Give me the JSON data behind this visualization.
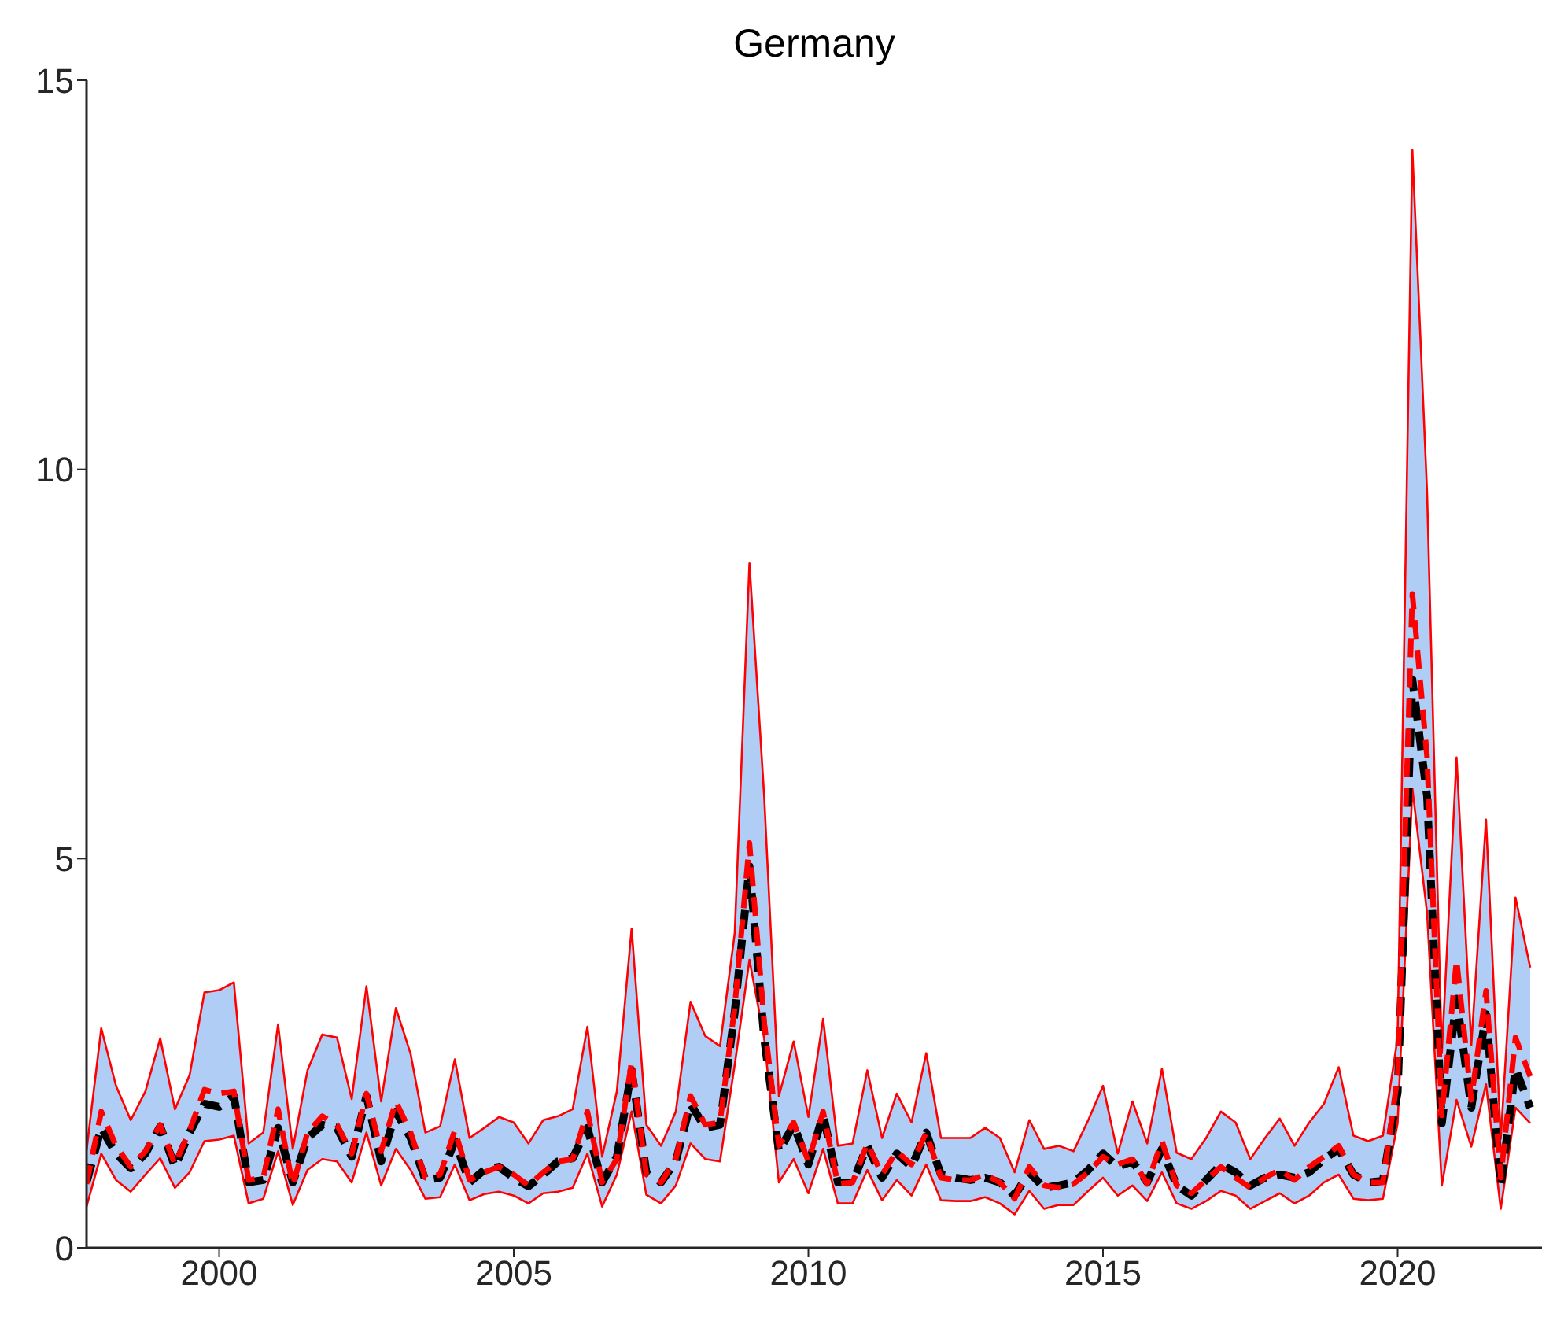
{
  "chart_data": {
    "type": "line",
    "title": "Germany",
    "x": [
      1997.75,
      1998,
      1998.25,
      1998.5,
      1998.75,
      1999,
      1999.25,
      1999.5,
      1999.75,
      2000,
      2000.25,
      2000.5,
      2000.75,
      2001,
      2001.25,
      2001.5,
      2001.75,
      2002,
      2002.25,
      2002.5,
      2002.75,
      2003,
      2003.25,
      2003.5,
      2003.75,
      2004,
      2004.25,
      2004.5,
      2004.75,
      2005,
      2005.25,
      2005.5,
      2005.75,
      2006,
      2006.25,
      2006.5,
      2006.75,
      2007,
      2007.25,
      2007.5,
      2007.75,
      2008,
      2008.25,
      2008.5,
      2008.75,
      2009,
      2009.25,
      2009.5,
      2009.75,
      2010,
      2010.25,
      2010.5,
      2010.75,
      2011,
      2011.25,
      2011.5,
      2011.75,
      2012,
      2012.25,
      2012.5,
      2012.75,
      2013,
      2013.25,
      2013.5,
      2013.75,
      2014,
      2014.25,
      2014.5,
      2014.75,
      2015,
      2015.25,
      2015.5,
      2015.75,
      2016,
      2016.25,
      2016.5,
      2016.75,
      2017,
      2017.25,
      2017.5,
      2017.75,
      2018,
      2018.25,
      2018.5,
      2018.75,
      2019,
      2019.25,
      2019.5,
      2019.75,
      2020,
      2020.25,
      2020.5,
      2020.75,
      2021,
      2021.25,
      2021.5,
      2021.75,
      2022,
      2022.25
    ],
    "series": [
      {
        "color": "#ff0000",
        "line_style": "solid",
        "values": [
          0.53,
          1.21,
          0.87,
          0.72,
          0.94,
          1.15,
          0.77,
          0.97,
          1.37,
          1.39,
          1.44,
          0.57,
          0.63,
          1.24,
          0.55,
          1.0,
          1.14,
          1.11,
          0.84,
          1.48,
          0.8,
          1.27,
          1.0,
          0.63,
          0.65,
          1.07,
          0.61,
          0.69,
          0.72,
          0.67,
          0.57,
          0.7,
          0.72,
          0.77,
          1.21,
          0.53,
          0.94,
          1.75,
          0.68,
          0.57,
          0.8,
          1.34,
          1.14,
          1.11,
          2.35,
          3.7,
          2.69,
          0.84,
          1.14,
          0.7,
          1.27,
          0.57,
          0.57,
          1.0,
          0.61,
          0.87,
          0.67,
          1.07,
          0.61,
          0.6,
          0.6,
          0.65,
          0.57,
          0.43,
          0.73,
          0.5,
          0.55,
          0.55,
          0.73,
          0.9,
          0.67,
          0.8,
          0.6,
          0.97,
          0.57,
          0.5,
          0.6,
          0.73,
          0.67,
          0.5,
          0.6,
          0.7,
          0.57,
          0.67,
          0.84,
          0.94,
          0.63,
          0.61,
          0.63,
          1.6,
          5.9,
          4.3,
          0.8,
          1.9,
          1.3,
          2.1,
          0.5,
          1.8,
          1.6
        ]
      },
      {
        "color": "#ff0000",
        "line_style": "solid",
        "values": [
          1.25,
          2.82,
          2.08,
          1.64,
          2.01,
          2.69,
          1.78,
          2.22,
          3.28,
          3.31,
          3.41,
          1.34,
          1.48,
          2.87,
          1.27,
          2.28,
          2.74,
          2.7,
          1.91,
          3.36,
          1.88,
          3.08,
          2.49,
          1.48,
          1.56,
          2.42,
          1.41,
          1.54,
          1.68,
          1.61,
          1.34,
          1.64,
          1.69,
          1.78,
          2.84,
          1.17,
          2.01,
          4.1,
          1.58,
          1.31,
          1.75,
          3.16,
          2.72,
          2.59,
          4.04,
          8.8,
          5.8,
          1.95,
          2.65,
          1.68,
          2.94,
          1.31,
          1.34,
          2.28,
          1.41,
          1.98,
          1.61,
          2.5,
          1.41,
          1.41,
          1.41,
          1.54,
          1.41,
          0.97,
          1.64,
          1.27,
          1.31,
          1.24,
          1.64,
          2.08,
          1.21,
          1.88,
          1.34,
          2.3,
          1.22,
          1.14,
          1.41,
          1.75,
          1.61,
          1.14,
          1.41,
          1.66,
          1.31,
          1.61,
          1.85,
          2.32,
          1.44,
          1.37,
          1.44,
          2.7,
          14.1,
          9.7,
          2.5,
          6.3,
          2.6,
          5.5,
          1.4,
          4.5,
          3.6
        ]
      },
      {
        "color": "#000000",
        "line_style": "dashed",
        "values": [
          0.84,
          1.54,
          1.21,
          1.02,
          1.21,
          1.56,
          1.04,
          1.48,
          1.85,
          1.81,
          1.95,
          0.84,
          0.87,
          1.54,
          0.84,
          1.41,
          1.58,
          1.54,
          1.17,
          1.95,
          1.11,
          1.75,
          1.41,
          0.87,
          0.9,
          1.37,
          0.84,
          1.0,
          1.04,
          0.9,
          0.79,
          0.94,
          1.11,
          1.15,
          1.54,
          0.84,
          1.17,
          2.28,
          0.97,
          0.84,
          1.11,
          1.85,
          1.54,
          1.58,
          3.03,
          4.9,
          2.69,
          1.24,
          1.58,
          1.07,
          1.71,
          0.84,
          0.84,
          1.31,
          0.9,
          1.21,
          1.04,
          1.48,
          0.94,
          0.9,
          0.87,
          0.9,
          0.84,
          0.67,
          0.97,
          0.77,
          0.8,
          0.84,
          1.0,
          1.21,
          1.04,
          1.11,
          0.84,
          1.27,
          0.8,
          0.67,
          0.87,
          1.07,
          0.97,
          0.8,
          0.9,
          0.94,
          0.9,
          0.97,
          1.14,
          1.27,
          0.94,
          0.84,
          0.86,
          2.0,
          7.3,
          5.8,
          1.6,
          3.2,
          1.8,
          3.0,
          0.8,
          2.3,
          1.8
        ]
      },
      {
        "color": "#ff0000",
        "line_style": "dashed",
        "values": [
          0.82,
          1.75,
          1.31,
          1.04,
          1.24,
          1.58,
          1.07,
          1.51,
          2.03,
          1.98,
          2.01,
          0.87,
          0.9,
          1.78,
          0.8,
          1.48,
          1.69,
          1.58,
          1.21,
          1.98,
          1.24,
          1.88,
          1.48,
          0.9,
          0.94,
          1.51,
          0.87,
          0.97,
          1.04,
          0.94,
          0.8,
          0.97,
          1.11,
          1.14,
          1.75,
          0.84,
          1.14,
          2.39,
          0.94,
          0.84,
          1.14,
          1.95,
          1.58,
          1.61,
          3.09,
          5.2,
          2.9,
          1.31,
          1.61,
          1.11,
          1.75,
          0.82,
          0.84,
          1.34,
          0.94,
          1.24,
          1.07,
          1.48,
          0.9,
          0.87,
          0.87,
          0.94,
          0.84,
          0.63,
          1.04,
          0.8,
          0.77,
          0.82,
          0.97,
          1.17,
          1.07,
          1.14,
          0.82,
          1.37,
          0.8,
          0.7,
          0.87,
          1.04,
          0.9,
          0.77,
          0.9,
          1.0,
          0.87,
          1.04,
          1.17,
          1.31,
          0.94,
          0.84,
          0.84,
          2.2,
          8.4,
          6.3,
          1.7,
          3.7,
          1.9,
          3.3,
          0.9,
          2.7,
          2.2
        ],
        "lower": [
          0.53,
          1.21,
          0.87,
          0.72,
          0.94,
          1.15,
          0.77,
          0.97,
          1.37,
          1.39,
          1.44,
          0.57,
          0.63,
          1.24,
          0.55,
          1.0,
          1.14,
          1.11,
          0.84,
          1.48,
          0.8,
          1.27,
          1.0,
          0.63,
          0.65,
          1.07,
          0.61,
          0.69,
          0.72,
          0.67,
          0.57,
          0.7,
          0.72,
          0.77,
          1.21,
          0.53,
          0.94,
          1.75,
          0.68,
          0.57,
          0.8,
          1.34,
          1.14,
          1.11,
          2.35,
          3.7,
          2.69,
          0.84,
          1.14,
          0.7,
          1.27,
          0.57,
          0.57,
          1.0,
          0.61,
          0.87,
          0.67,
          1.07,
          0.61,
          0.6,
          0.6,
          0.65,
          0.57,
          0.43,
          0.73,
          0.5,
          0.55,
          0.55,
          0.73,
          0.9,
          0.67,
          0.8,
          0.6,
          0.97,
          0.57,
          0.5,
          0.6,
          0.73,
          0.67,
          0.5,
          0.6,
          0.7,
          0.57,
          0.67,
          0.84,
          0.94,
          0.63,
          0.61,
          0.63,
          1.6,
          5.9,
          4.3,
          0.8,
          1.9,
          1.3,
          2.1,
          0.5,
          1.8,
          1.6
        ],
        "upper": [
          1.25,
          2.82,
          2.08,
          1.64,
          2.01,
          2.69,
          1.78,
          2.22,
          3.28,
          3.31,
          3.41,
          1.34,
          1.48,
          2.87,
          1.27,
          2.28,
          2.74,
          2.7,
          1.91,
          3.36,
          1.88,
          3.08,
          2.49,
          1.48,
          1.56,
          2.42,
          1.41,
          1.54,
          1.68,
          1.61,
          1.34,
          1.64,
          1.69,
          1.78,
          2.84,
          1.17,
          2.01,
          4.1,
          1.58,
          1.31,
          1.75,
          3.16,
          2.72,
          2.59,
          4.04,
          8.8,
          5.8,
          1.95,
          2.65,
          1.68,
          2.94,
          1.31,
          1.34,
          2.28,
          1.41,
          1.98,
          1.61,
          2.5,
          1.41,
          1.41,
          1.41,
          1.54,
          1.41,
          0.97,
          1.64,
          1.27,
          1.31,
          1.24,
          1.64,
          2.08,
          1.21,
          1.88,
          1.34,
          2.3,
          1.22,
          1.14,
          1.41,
          1.75,
          1.61,
          1.14,
          1.41,
          1.66,
          1.31,
          1.61,
          1.85,
          2.32,
          1.44,
          1.37,
          1.44,
          2.7,
          14.1,
          9.7,
          2.5,
          6.3,
          2.6,
          5.5,
          1.4,
          4.5,
          3.6
        ]
      }
    ],
    "xlim": [
      1997.75,
      2022.45
    ],
    "xticks": [
      2000,
      2005,
      2010,
      2015,
      2020
    ],
    "ylim": [
      0,
      15
    ],
    "yticks": [
      0,
      5,
      10,
      15
    ]
  }
}
